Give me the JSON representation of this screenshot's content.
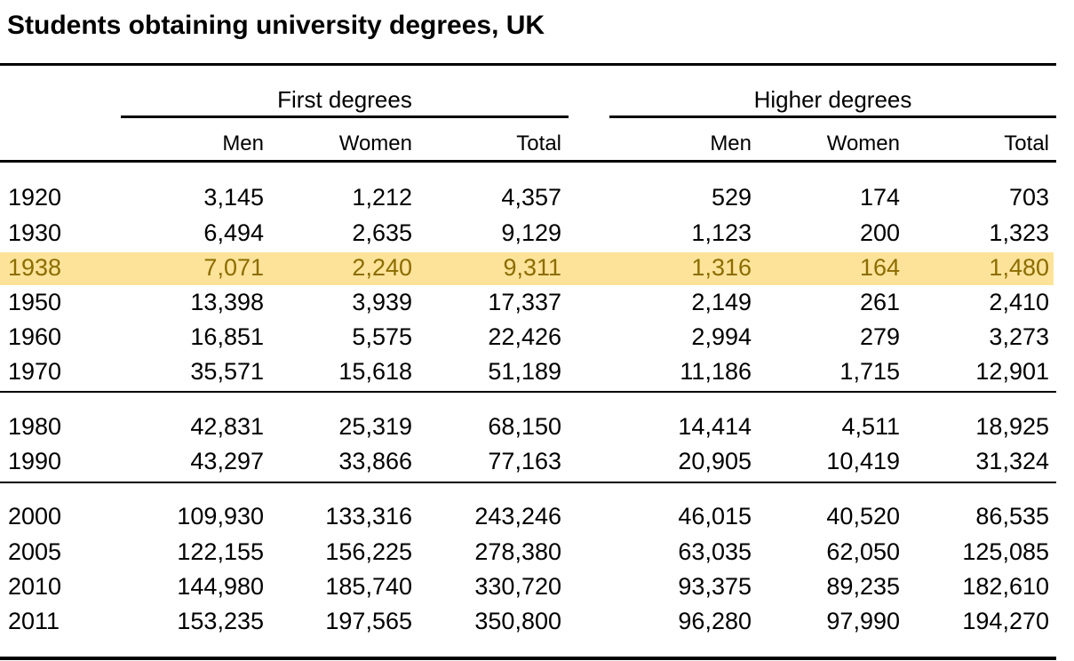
{
  "title": "Students obtaining university degrees, UK",
  "highlight_color": "#fde39a",
  "highlight_text_color": "#8c6d00",
  "groups": {
    "first": "First degrees",
    "higher": "Higher degrees"
  },
  "columns": [
    "Men",
    "Women",
    "Total",
    "Men",
    "Women",
    "Total"
  ],
  "rows": [
    {
      "year": "1920",
      "values": [
        "3,145",
        "1,212",
        "4,357",
        "529",
        "174",
        "703"
      ]
    },
    {
      "year": "1930",
      "values": [
        "6,494",
        "2,635",
        "9,129",
        "1,123",
        "200",
        "1,323"
      ]
    },
    {
      "year": "1938",
      "values": [
        "7,071",
        "2,240",
        "9,311",
        "1,316",
        "164",
        "1,480"
      ],
      "highlighted": true
    },
    {
      "year": "1950",
      "values": [
        "13,398",
        "3,939",
        "17,337",
        "2,149",
        "261",
        "2,410"
      ]
    },
    {
      "year": "1960",
      "values": [
        "16,851",
        "5,575",
        "22,426",
        "2,994",
        "279",
        "3,273"
      ]
    },
    {
      "year": "1970",
      "values": [
        "35,571",
        "15,618",
        "51,189",
        "11,186",
        "1,715",
        "12,901"
      ]
    },
    {
      "year": "1980",
      "values": [
        "42,831",
        "25,319",
        "68,150",
        "14,414",
        "4,511",
        "18,925"
      ]
    },
    {
      "year": "1990",
      "values": [
        "43,297",
        "33,866",
        "77,163",
        "20,905",
        "10,419",
        "31,324"
      ]
    },
    {
      "year": "2000",
      "values": [
        "109,930",
        "133,316",
        "243,246",
        "46,015",
        "40,520",
        "86,535"
      ]
    },
    {
      "year": "2005",
      "values": [
        "122,155",
        "156,225",
        "278,380",
        "63,035",
        "62,050",
        "125,085"
      ]
    },
    {
      "year": "2010",
      "values": [
        "144,980",
        "185,740",
        "330,720",
        "93,375",
        "89,235",
        "182,610"
      ]
    },
    {
      "year": "2011",
      "values": [
        "153,235",
        "197,565",
        "350,800",
        "96,280",
        "97,990",
        "194,270"
      ]
    }
  ]
}
